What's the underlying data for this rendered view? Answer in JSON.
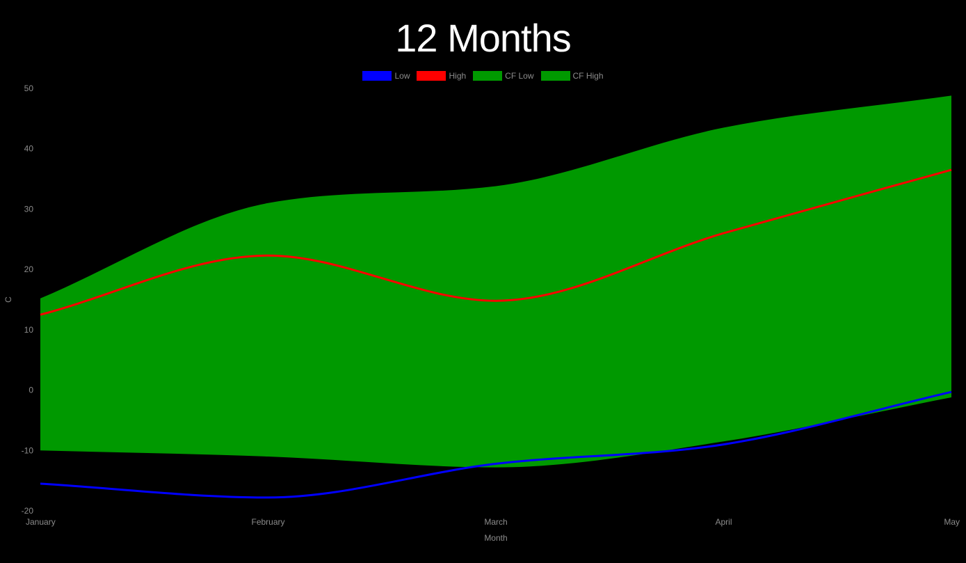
{
  "chart_data": {
    "type": "line",
    "title": "12 Months",
    "xlabel": "Month",
    "ylabel": "C",
    "categories": [
      "January",
      "February",
      "March",
      "April",
      "May"
    ],
    "ylim": [
      -20,
      50
    ],
    "yticks": [
      50,
      40,
      30,
      20,
      10,
      0,
      -10,
      -20
    ],
    "grid": false,
    "legend_position": "top-center",
    "series": [
      {
        "name": "Low",
        "color": "#0000ff",
        "values": [
          -15.5,
          -17.8,
          -12.2,
          -9.0,
          -0.3
        ]
      },
      {
        "name": "High",
        "color": "#ff0000",
        "values": [
          12.5,
          22.3,
          14.8,
          26.0,
          36.5
        ]
      },
      {
        "name": "CF Low",
        "color": "#009900",
        "values": [
          -10.0,
          -11.0,
          -12.8,
          -8.5,
          -1.2
        ]
      },
      {
        "name": "CF High",
        "color": "#009900",
        "values": [
          15.2,
          31.0,
          33.8,
          43.5,
          48.8
        ]
      }
    ]
  }
}
